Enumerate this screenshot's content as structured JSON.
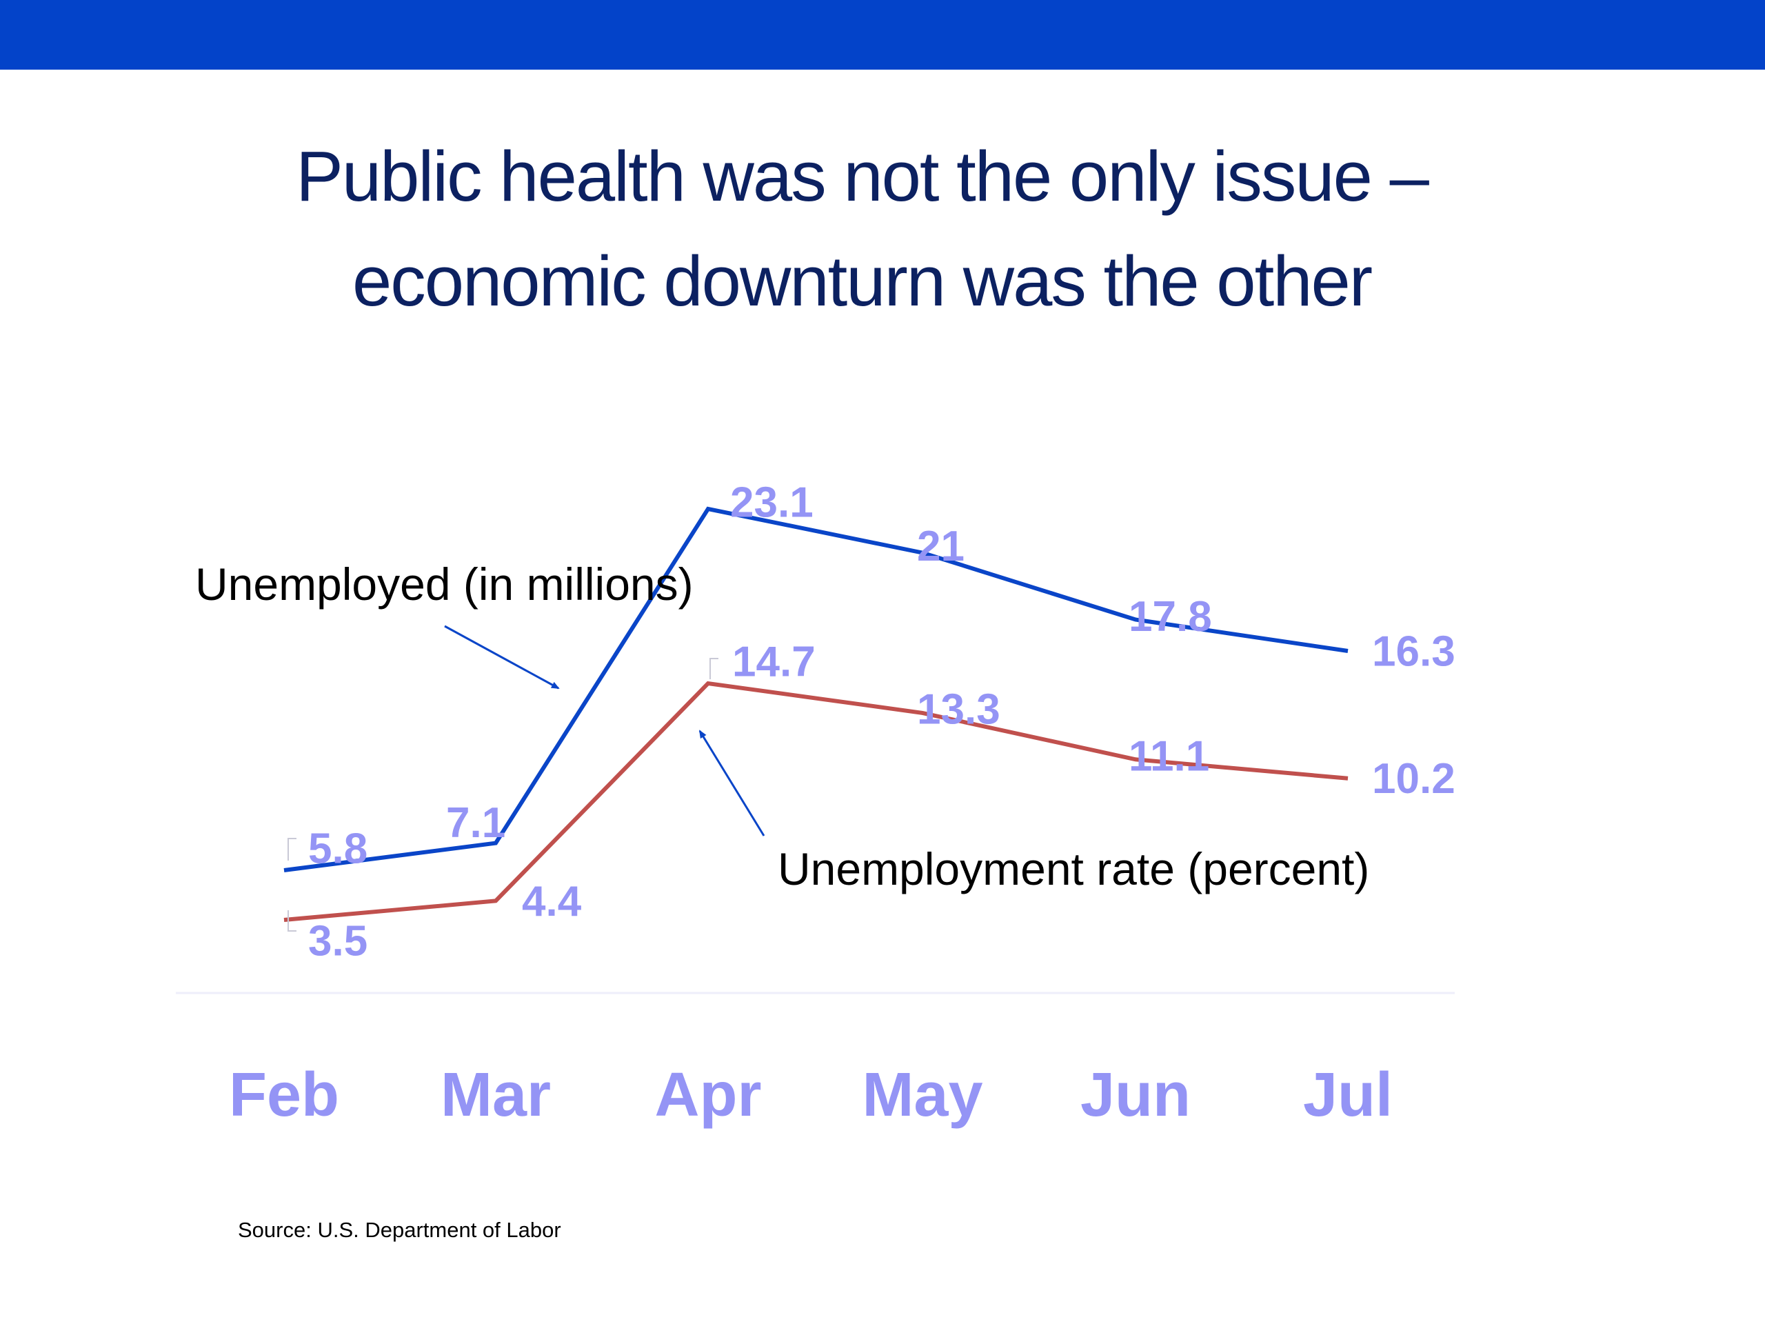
{
  "title_lines": [
    "Public health was not the only issue –",
    "economic downturn was the other"
  ],
  "source": "Source: U.S. Department of Labor",
  "colors": {
    "band": "#0343c9",
    "title": "#0c2161",
    "unemployed_line": "#0a45c8",
    "rate_line": "#c0504d",
    "data_label": "#9494f5",
    "axis": "#eeeefb",
    "annotation_text": "#000000"
  },
  "chart_data": {
    "type": "line",
    "categories": [
      "Feb",
      "Mar",
      "Apr",
      "May",
      "Jun",
      "Jul"
    ],
    "series": [
      {
        "name": "Unemployed (in millions)",
        "values": [
          5.8,
          7.1,
          23.1,
          21,
          17.8,
          16.3
        ],
        "labels": [
          "5.8",
          "7.1",
          "23.1",
          "21",
          "17.8",
          "16.3"
        ]
      },
      {
        "name": "Unemployment rate (percent)",
        "values": [
          3.5,
          4.4,
          14.7,
          13.3,
          11.1,
          10.2
        ],
        "labels": [
          "3.5",
          "4.4",
          "14.7",
          "13.3",
          "11.1",
          "10.2"
        ]
      }
    ],
    "annotations": [
      "Unemployed (in millions)",
      "Unemployment rate (percent)"
    ],
    "grid": false,
    "legend": "none"
  }
}
